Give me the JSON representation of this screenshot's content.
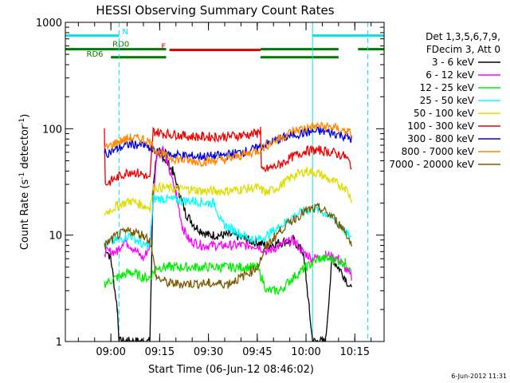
{
  "chart_data": {
    "type": "line",
    "title": "HESSI Observing Summary Count Rates",
    "xlabel": "Start Time (06-Jun-12 08:46:02)",
    "ylabel_main": "Count Rate (s",
    "ylabel_sup1": "-1",
    "ylabel_mid": " detector",
    "ylabel_sup2": "-1",
    "ylabel_end": ")",
    "y_scale": "log",
    "ylim": [
      1,
      1000
    ],
    "xlim_minutes_after_0846": [
      0,
      98
    ],
    "x_ticks": [
      {
        "label": "09:00",
        "t": 14
      },
      {
        "label": "09:15",
        "t": 29
      },
      {
        "label": "09:30",
        "t": 44
      },
      {
        "label": "09:45",
        "t": 59
      },
      {
        "label": "10:00",
        "t": 74
      },
      {
        "label": "10:15",
        "t": 89
      }
    ],
    "y_ticks": [
      {
        "label": "1",
        "v": 1
      },
      {
        "label": "10",
        "v": 10
      },
      {
        "label": "100",
        "v": 100
      },
      {
        "label": "1000",
        "v": 1000
      }
    ],
    "legend_header": [
      "Det 1,3,5,6,7,9,",
      "FDecim 3, Att 0"
    ],
    "timestamp": "6-Jun-2012 11:31",
    "flag_labels": {
      "N": "N",
      "F": "F",
      "RD0": "RD0",
      "RD6": "RD6"
    },
    "flags": {
      "night": {
        "color": "#00e5e5",
        "value": 750,
        "segments": [
          [
            0,
            16.5
          ],
          [
            76,
            98
          ]
        ]
      },
      "flare": {
        "color": "#dd0000",
        "value": 550,
        "segments": [
          [
            32,
            60
          ]
        ]
      },
      "rd0": {
        "color": "#007a00",
        "value": 560,
        "segments": [
          [
            0,
            31
          ],
          [
            60,
            84
          ],
          [
            90,
            98
          ]
        ]
      },
      "rd6": {
        "color": "#007a00",
        "value": 470,
        "segments": [
          [
            14,
            31
          ],
          [
            60,
            84
          ]
        ]
      }
    },
    "dashed_markers": [
      {
        "t": 16.5,
        "color": "#00e5e5"
      },
      {
        "t": 93,
        "color": "#00e5e5"
      }
    ],
    "solid_markers": [
      {
        "t": 76,
        "color": "#00e5e5"
      }
    ],
    "data_gaps": [
      [
        0,
        12
      ],
      [
        94,
        98
      ]
    ],
    "series": [
      {
        "name": "3 - 6 keV",
        "color": "#000000",
        "points": [
          [
            12,
            8
          ],
          [
            14,
            6
          ],
          [
            16,
            2
          ],
          [
            16.5,
            1
          ],
          [
            20,
            1
          ],
          [
            25,
            1
          ],
          [
            26,
            1
          ],
          [
            27,
            30
          ],
          [
            28,
            55
          ],
          [
            29,
            60
          ],
          [
            31,
            50
          ],
          [
            33,
            40
          ],
          [
            35,
            25
          ],
          [
            37,
            16
          ],
          [
            40,
            12
          ],
          [
            44,
            10
          ],
          [
            48,
            10
          ],
          [
            52,
            10
          ],
          [
            56,
            9
          ],
          [
            59,
            8.5
          ],
          [
            62,
            8
          ],
          [
            66,
            8.5
          ],
          [
            70,
            9
          ],
          [
            73,
            7
          ],
          [
            74,
            4
          ],
          [
            75,
            2
          ],
          [
            76,
            1
          ],
          [
            78,
            1
          ],
          [
            80,
            1
          ],
          [
            82,
            6
          ],
          [
            84,
            5
          ],
          [
            86,
            4
          ],
          [
            88,
            3
          ]
        ]
      },
      {
        "name": "6 - 12 keV",
        "color": "#ff00ff",
        "points": [
          [
            12,
            7
          ],
          [
            16,
            7
          ],
          [
            18,
            9
          ],
          [
            20,
            8
          ],
          [
            24,
            6
          ],
          [
            26,
            8
          ],
          [
            28,
            55
          ],
          [
            30,
            65
          ],
          [
            32,
            40
          ],
          [
            34,
            25
          ],
          [
            36,
            12
          ],
          [
            38,
            9
          ],
          [
            42,
            8
          ],
          [
            48,
            8
          ],
          [
            54,
            8
          ],
          [
            59,
            8
          ],
          [
            62,
            7
          ],
          [
            66,
            8
          ],
          [
            70,
            9
          ],
          [
            73,
            7
          ],
          [
            76,
            6
          ],
          [
            80,
            6.5
          ],
          [
            84,
            6
          ],
          [
            88,
            4
          ]
        ]
      },
      {
        "name": "12 - 25 keV",
        "color": "#00ee00",
        "points": [
          [
            12,
            3.5
          ],
          [
            16,
            4
          ],
          [
            20,
            4.5
          ],
          [
            24,
            4
          ],
          [
            26,
            4
          ],
          [
            28,
            5
          ],
          [
            32,
            5
          ],
          [
            40,
            5
          ],
          [
            48,
            5
          ],
          [
            54,
            5
          ],
          [
            59,
            5
          ],
          [
            62,
            3
          ],
          [
            66,
            3
          ],
          [
            70,
            4
          ],
          [
            74,
            5
          ],
          [
            78,
            6
          ],
          [
            82,
            6
          ],
          [
            86,
            5.5
          ],
          [
            88,
            5
          ]
        ]
      },
      {
        "name": "25 - 50 keV",
        "color": "#00ffff",
        "points": [
          [
            12,
            8
          ],
          [
            16,
            9
          ],
          [
            20,
            10
          ],
          [
            24,
            8
          ],
          [
            26,
            8
          ],
          [
            27,
            22
          ],
          [
            30,
            22
          ],
          [
            36,
            21
          ],
          [
            40,
            21
          ],
          [
            44,
            20
          ],
          [
            46,
            20
          ],
          [
            48,
            13
          ],
          [
            52,
            11
          ],
          [
            56,
            9.5
          ],
          [
            59,
            9
          ],
          [
            62,
            10
          ],
          [
            66,
            12
          ],
          [
            70,
            15
          ],
          [
            74,
            17
          ],
          [
            76,
            18
          ],
          [
            80,
            16
          ],
          [
            84,
            13
          ],
          [
            88,
            9
          ]
        ]
      },
      {
        "name": "50 - 100 keV",
        "color": "#dddd00",
        "points": [
          [
            12,
            16
          ],
          [
            16,
            19
          ],
          [
            20,
            21
          ],
          [
            24,
            19
          ],
          [
            26,
            18
          ],
          [
            27,
            28
          ],
          [
            30,
            28
          ],
          [
            34,
            27
          ],
          [
            38,
            27
          ],
          [
            42,
            26
          ],
          [
            46,
            26
          ],
          [
            50,
            26
          ],
          [
            54,
            27
          ],
          [
            59,
            28
          ],
          [
            62,
            25
          ],
          [
            66,
            29
          ],
          [
            70,
            36
          ],
          [
            74,
            40
          ],
          [
            78,
            38
          ],
          [
            82,
            32
          ],
          [
            86,
            28
          ],
          [
            88,
            22
          ]
        ]
      },
      {
        "name": "100 - 300 keV",
        "color": "#ee0000",
        "points": [
          [
            12,
            100
          ],
          [
            12.3,
            30
          ],
          [
            16,
            35
          ],
          [
            20,
            40
          ],
          [
            24,
            37
          ],
          [
            26,
            33
          ],
          [
            27,
            95
          ],
          [
            30,
            90
          ],
          [
            34,
            88
          ],
          [
            38,
            85
          ],
          [
            42,
            84
          ],
          [
            46,
            84
          ],
          [
            50,
            85
          ],
          [
            54,
            87
          ],
          [
            59,
            90
          ],
          [
            60,
            100
          ],
          [
            60.3,
            40
          ],
          [
            66,
            46
          ],
          [
            70,
            55
          ],
          [
            74,
            62
          ],
          [
            78,
            63
          ],
          [
            82,
            60
          ],
          [
            86,
            55
          ],
          [
            88,
            45
          ]
        ]
      },
      {
        "name": "300 - 800 keV",
        "color": "#0000dd",
        "points": [
          [
            12,
            58
          ],
          [
            16,
            65
          ],
          [
            20,
            72
          ],
          [
            24,
            70
          ],
          [
            26,
            65
          ],
          [
            28,
            60
          ],
          [
            30,
            58
          ],
          [
            34,
            57
          ],
          [
            38,
            55
          ],
          [
            42,
            55
          ],
          [
            46,
            55
          ],
          [
            50,
            57
          ],
          [
            54,
            60
          ],
          [
            59,
            65
          ],
          [
            62,
            72
          ],
          [
            66,
            80
          ],
          [
            70,
            88
          ],
          [
            74,
            92
          ],
          [
            78,
            95
          ],
          [
            82,
            92
          ],
          [
            86,
            85
          ],
          [
            88,
            80
          ]
        ]
      },
      {
        "name": "800 - 7000 keV",
        "color": "#ff8800",
        "points": [
          [
            12,
            65
          ],
          [
            16,
            75
          ],
          [
            20,
            82
          ],
          [
            24,
            80
          ],
          [
            26,
            75
          ],
          [
            28,
            62
          ],
          [
            30,
            56
          ],
          [
            34,
            52
          ],
          [
            38,
            50
          ],
          [
            42,
            49
          ],
          [
            46,
            50
          ],
          [
            50,
            52
          ],
          [
            54,
            56
          ],
          [
            59,
            62
          ],
          [
            62,
            70
          ],
          [
            66,
            82
          ],
          [
            70,
            95
          ],
          [
            74,
            102
          ],
          [
            78,
            106
          ],
          [
            82,
            103
          ],
          [
            86,
            95
          ],
          [
            88,
            90
          ]
        ]
      },
      {
        "name": "7000 - 20000 keV",
        "color": "#7a5a00",
        "points": [
          [
            12,
            8
          ],
          [
            16,
            10
          ],
          [
            20,
            11
          ],
          [
            24,
            10
          ],
          [
            26,
            9
          ],
          [
            28,
            4
          ],
          [
            32,
            3.5
          ],
          [
            38,
            3.5
          ],
          [
            44,
            3.5
          ],
          [
            50,
            3.5
          ],
          [
            54,
            4
          ],
          [
            59,
            5
          ],
          [
            62,
            8
          ],
          [
            66,
            11
          ],
          [
            70,
            14
          ],
          [
            74,
            17
          ],
          [
            78,
            18
          ],
          [
            82,
            15
          ],
          [
            86,
            11
          ],
          [
            88,
            8
          ]
        ]
      }
    ]
  }
}
